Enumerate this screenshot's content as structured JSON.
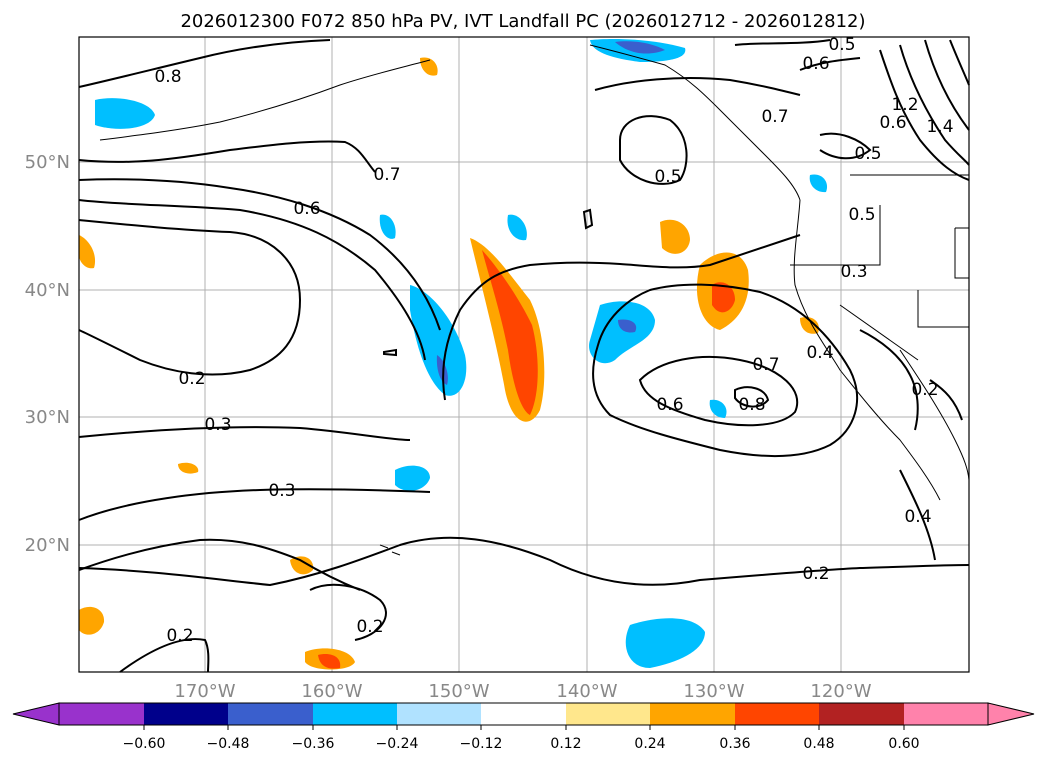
{
  "title": "2026012300 F072 850 hPa PV, IVT Landfall PC (2026012712 - 2026012812)",
  "lat_labels": [
    "50°N",
    "40°N",
    "30°N",
    "20°N"
  ],
  "lon_labels": [
    "170°W",
    "160°W",
    "150°W",
    "140°W",
    "130°W",
    "120°W"
  ],
  "contour_labels": [
    "0.8",
    "0.7",
    "0.6",
    "0.5",
    "0.5",
    "0.6",
    "0.7",
    "0.5",
    "0.5",
    "0.3",
    "0.4",
    "0.7",
    "0.8",
    "0.6",
    "0.2",
    "0.3",
    "0.3",
    "0.2",
    "0.2",
    "0.2",
    "0.4",
    "0.2",
    "1.2",
    "1.4",
    "0.6"
  ],
  "colorbar": {
    "ticks": [
      "−0.60",
      "−0.48",
      "−0.36",
      "−0.24",
      "−0.12",
      "0.12",
      "0.24",
      "0.36",
      "0.48",
      "0.60"
    ],
    "colors": [
      "#9932cc",
      "#00008b",
      "#3a5fcd",
      "#00bfff",
      "#b0e2ff",
      "#ffffff",
      "#ffe78c",
      "#ffa500",
      "#ff4500",
      "#b22222",
      "#ff82ab"
    ]
  }
}
